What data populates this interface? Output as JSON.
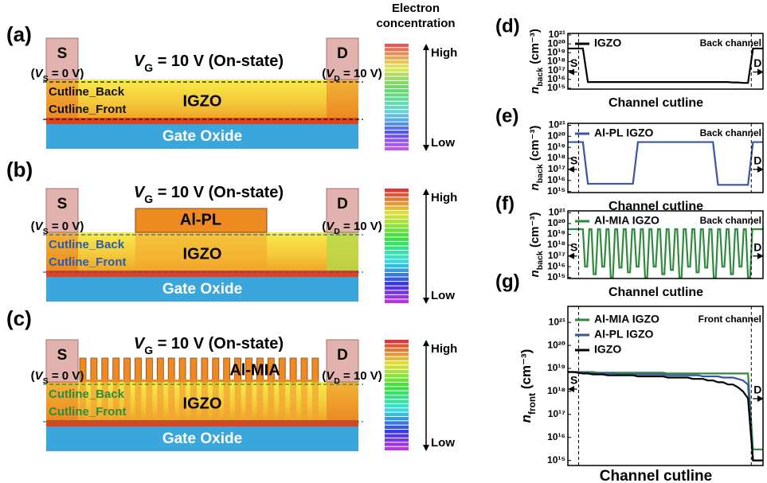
{
  "colorbar_title": [
    "Electron",
    "concentration"
  ],
  "diagrams": [
    {
      "label": "(a)",
      "gate_bias": {
        "symbol": "V",
        "sub": "G",
        "text": " = 10 V (On-state)"
      },
      "source": "S",
      "drain": "D",
      "source_bias": {
        "prefix": "(",
        "symbol": "V",
        "sub": "S",
        "text": " = 0 V)"
      },
      "drain_bias": {
        "prefix": "(",
        "symbol": "V",
        "sub": "D",
        "text": " = 10 V)"
      },
      "channel": "IGZO",
      "oxide": "Gate Oxide",
      "cutline_back": "Cutline_Back",
      "cutline_front": "Cutline_Front",
      "high": "High",
      "low": "Low"
    },
    {
      "label": "(b)",
      "gate_bias": {
        "symbol": "V",
        "sub": "G",
        "text": " = 10 V (On-state)"
      },
      "source": "S",
      "drain": "D",
      "top_electrode": "Al-PL",
      "source_bias": {
        "prefix": "(",
        "symbol": "V",
        "sub": "S",
        "text": " = 0 V)"
      },
      "drain_bias": {
        "prefix": "(",
        "symbol": "V",
        "sub": "D",
        "text": " = 10 V)"
      },
      "channel": "IGZO",
      "oxide": "Gate Oxide",
      "cutline_back": "Cutline_Back",
      "cutline_front": "Cutline_Front",
      "high": "High",
      "low": "Low"
    },
    {
      "label": "(c)",
      "gate_bias": {
        "symbol": "V",
        "sub": "G",
        "text": " = 10 V (On-state)"
      },
      "source": "S",
      "drain": "D",
      "top_electrode": "Al-MIA",
      "source_bias": {
        "prefix": "(",
        "symbol": "V",
        "sub": "S",
        "text": " = 0 V)"
      },
      "drain_bias": {
        "prefix": "(",
        "symbol": "V",
        "sub": "D",
        "text": " = 10 V)"
      },
      "channel": "IGZO",
      "oxide": "Gate Oxide",
      "cutline_back": "Cutline_Back",
      "cutline_front": "Cutline_Front",
      "high": "High",
      "low": "Low"
    }
  ],
  "chart_data": [
    {
      "type": "line",
      "panel_label": "(d)",
      "ylabel": {
        "symbol": "n",
        "sub": "back",
        "unit": " (cm⁻³)"
      },
      "xlabel": "Channel cutline",
      "channel": "Back channel",
      "source": "S",
      "drain": "D",
      "log_y": true,
      "ylim": [
        800000000000000.0,
        1.5e+21
      ],
      "yticks": [
        {
          "value": 1000000000000000.0,
          "label": "10¹⁵"
        },
        {
          "value": 1e+16,
          "label": "10¹⁶"
        },
        {
          "value": 1e+17,
          "label": "10¹⁷"
        },
        {
          "value": 1e+18,
          "label": "10¹⁸"
        },
        {
          "value": 1e+19,
          "label": "10¹⁹"
        },
        {
          "value": 1e+20,
          "label": "10²⁰"
        },
        {
          "value": 1e+21,
          "label": "10²¹"
        }
      ],
      "series": [
        {
          "name": "IGZO",
          "color": "#000000",
          "values": [
            3e+19,
            3e+19,
            3e+19,
            3e+19,
            5000000000000000.0,
            5000000000000000.0,
            5000000000000000.0,
            5000000000000000.0,
            5000000000000000.0,
            5000000000000000.0,
            5000000000000000.0,
            5000000000000000.0,
            5000000000000000.0,
            5000000000000000.0,
            5000000000000000.0,
            5000000000000000.0,
            5000000000000000.0,
            5000000000000000.0,
            5000000000000000.0,
            5000000000000000.0,
            5000000000000000.0,
            5000000000000000.0,
            5000000000000000.0,
            5000000000000000.0,
            5000000000000000.0,
            5000000000000000.0,
            5000000000000000.0,
            5000000000000000.0,
            5000000000000000.0,
            5000000000000000.0,
            5000000000000000.0,
            5000000000000000.0,
            5000000000000000.0,
            4500000000000000.0,
            4500000000000000.0,
            4000000000000000.0,
            4000000000000000.0,
            3e+19,
            3e+19,
            3e+19
          ]
        }
      ]
    },
    {
      "type": "line",
      "panel_label": "(e)",
      "ylabel": {
        "symbol": "n",
        "sub": "back",
        "unit": " (cm⁻³)"
      },
      "xlabel": "Channel cutline",
      "channel": "Back channel",
      "source": "S",
      "drain": "D",
      "log_y": true,
      "ylim": [
        800000000000000.0,
        1.5e+21
      ],
      "yticks": [
        {
          "value": 1000000000000000.0,
          "label": "10¹⁵"
        },
        {
          "value": 1e+16,
          "label": "10¹⁶"
        },
        {
          "value": 1e+17,
          "label": "10¹⁷"
        },
        {
          "value": 1e+18,
          "label": "10¹⁸"
        },
        {
          "value": 1e+19,
          "label": "10¹⁹"
        },
        {
          "value": 1e+20,
          "label": "10²⁰"
        },
        {
          "value": 1e+21,
          "label": "10²¹"
        }
      ],
      "series": [
        {
          "name": "Al-PL IGZO",
          "color": "#3a55a4",
          "values": [
            3e+19,
            3e+19,
            3e+19,
            3e+19,
            5000000000000000.0,
            5000000000000000.0,
            5000000000000000.0,
            5000000000000000.0,
            5000000000000000.0,
            5000000000000000.0,
            5000000000000000.0,
            5000000000000000.0,
            5000000000000000.0,
            5000000000000000.0,
            3e+19,
            3e+19,
            3e+19,
            3e+19,
            3e+19,
            3e+19,
            3e+19,
            3e+19,
            3e+19,
            3e+19,
            3e+19,
            3e+19,
            3e+19,
            3e+19,
            3e+19,
            3e+19,
            4000000000000000.0,
            4000000000000000.0,
            4000000000000000.0,
            4000000000000000.0,
            4000000000000000.0,
            4000000000000000.0,
            4000000000000000.0,
            3e+19,
            3e+19,
            3e+19
          ]
        }
      ]
    },
    {
      "type": "line",
      "panel_label": "(f)",
      "ylabel": {
        "symbol": "n",
        "sub": "back",
        "unit": " (cm⁻³)"
      },
      "xlabel": "Channel cutline",
      "channel": "Back channel",
      "source": "S",
      "drain": "D",
      "log_y": true,
      "ylim": [
        800000000000000.0,
        1.5e+21
      ],
      "yticks": [
        {
          "value": 1000000000000000.0,
          "label": "10¹⁵"
        },
        {
          "value": 1e+16,
          "label": "10¹⁶"
        },
        {
          "value": 1e+17,
          "label": "10¹⁷"
        },
        {
          "value": 1e+18,
          "label": "10¹⁸"
        },
        {
          "value": 1e+19,
          "label": "10¹⁹"
        },
        {
          "value": 1e+20,
          "label": "10²⁰"
        },
        {
          "value": 1e+21,
          "label": "10²¹"
        }
      ],
      "series": [
        {
          "name": "Al-MIA IGZO",
          "color": "#2e8b3e",
          "values": [
            3e+19,
            3e+19,
            3e+19,
            3e+19,
            3e+19,
            3e+19,
            3e+19,
            3e+19,
            1e+16,
            1e+16,
            3e+19,
            3e+19,
            2000000000000000.0,
            2000000000000000.0,
            3e+19,
            3e+19,
            1e+16,
            1e+16,
            3e+19,
            3e+19,
            1000000000000000.0,
            1000000000000000.0,
            3e+19,
            3e+19,
            8000000000000000.0,
            8000000000000000.0,
            3e+19,
            3e+19,
            3000000000000000.0,
            3000000000000000.0,
            3e+19,
            3e+19,
            1e+16,
            1e+16,
            3e+19,
            3e+19,
            1000000000000000.0,
            1000000000000000.0,
            3e+19,
            3e+19,
            1e+16,
            1e+16,
            3e+19,
            3e+19,
            2000000000000000.0,
            2000000000000000.0,
            3e+19,
            3e+19,
            5000000000000000.0,
            5000000000000000.0,
            3e+19,
            3e+19,
            1000000000000000.0,
            1000000000000000.0,
            3e+19,
            3e+19,
            1e+16,
            1e+16,
            3e+19,
            3e+19,
            3000000000000000.0,
            3000000000000000.0,
            3e+19,
            3e+19,
            8000000000000000.0,
            8000000000000000.0,
            3e+19,
            3e+19,
            1000000000000000.0,
            1000000000000000.0,
            3e+19,
            3e+19,
            1e+16,
            1e+16,
            3e+19,
            3e+19,
            2000000000000000.0,
            2000000000000000.0,
            3e+19,
            3e+19,
            1e+16,
            1e+16,
            3e+19,
            3e+19,
            1000000000000000.0,
            1000000000000000.0,
            3e+19,
            3e+19,
            3e+19,
            3e+19,
            3e+19,
            3e+19
          ]
        }
      ]
    },
    {
      "type": "line",
      "panel_label": "(g)",
      "ylabel": {
        "symbol": "n",
        "sub": "front",
        "unit": " (cm⁻³)"
      },
      "xlabel": "Channel cutline",
      "channel": "Front channel",
      "source": "S",
      "drain": "D",
      "log_y": true,
      "ylim": [
        600000000000000.0,
        5e+21
      ],
      "yticks": [
        {
          "value": 1000000000000000.0,
          "label": "10¹⁵"
        },
        {
          "value": 1e+16,
          "label": "10¹⁶"
        },
        {
          "value": 1e+17,
          "label": "10¹⁷"
        },
        {
          "value": 1e+18,
          "label": "10¹⁸"
        },
        {
          "value": 1e+19,
          "label": "10¹⁹"
        },
        {
          "value": 1e+20,
          "label": "10²⁰"
        },
        {
          "value": 1e+21,
          "label": "10²¹"
        }
      ],
      "series": [
        {
          "name": "Al-MIA IGZO",
          "color": "#2e8b3e",
          "values": [
            7e+18,
            7e+18,
            7e+18,
            7e+18,
            7e+18,
            7e+18,
            6.5e+18,
            6.5e+18,
            6.5e+18,
            6.5e+18,
            6.5e+18,
            6.5e+18,
            6.5e+18,
            6.5e+18,
            6.5e+18,
            6.5e+18,
            6.5e+18,
            6.5e+18,
            6.5e+18,
            6.5e+18,
            6e+18,
            6e+18,
            6e+18,
            6e+18,
            6e+18,
            6e+18,
            6e+18,
            6e+18,
            6e+18,
            6e+18,
            6e+18,
            6e+18,
            6e+18,
            6e+18,
            6e+18,
            6e+18,
            6e+18,
            3000000000000000.0,
            3000000000000000.0,
            3000000000000000.0
          ]
        },
        {
          "name": "Al-PL IGZO",
          "color": "#3a55a4",
          "values": [
            7e+18,
            7e+18,
            7e+18,
            6.5e+18,
            6.5e+18,
            6e+18,
            6e+18,
            6e+18,
            6e+18,
            6e+18,
            5.5e+18,
            5.5e+18,
            5.5e+18,
            5.5e+18,
            5.5e+18,
            5.5e+18,
            5.5e+18,
            5.5e+18,
            5.5e+18,
            5.5e+18,
            5e+18,
            5e+18,
            5e+18,
            5e+18,
            5e+18,
            5e+18,
            5e+18,
            4.5e+18,
            4.5e+18,
            4.5e+18,
            4.5e+18,
            4e+18,
            4e+18,
            4e+18,
            3.5e+18,
            3e+18,
            2e+18,
            1000000000000000.0,
            1000000000000000.0,
            1000000000000000.0
          ]
        },
        {
          "name": "IGZO",
          "color": "#000000",
          "values": [
            7e+18,
            7e+18,
            6.5e+18,
            6e+18,
            6e+18,
            5.5e+18,
            5.5e+18,
            5.5e+18,
            5e+18,
            5e+18,
            5e+18,
            5e+18,
            5e+18,
            5e+18,
            4.5e+18,
            4.5e+18,
            4.5e+18,
            4.5e+18,
            4.5e+18,
            4.5e+18,
            4e+18,
            4e+18,
            4e+18,
            4e+18,
            4e+18,
            3.5e+18,
            3.5e+18,
            3.5e+18,
            3e+18,
            3e+18,
            2.5e+18,
            2.5e+18,
            2e+18,
            2e+18,
            1.5e+18,
            1e+18,
            5e+17,
            1000000000000000.0,
            1000000000000000.0,
            1000000000000000.0
          ]
        }
      ]
    }
  ]
}
